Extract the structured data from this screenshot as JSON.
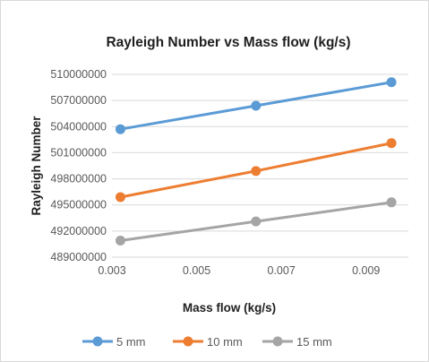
{
  "chart_data": {
    "type": "line",
    "title": "Rayleigh Number vs Mass flow (kg/s)",
    "xlabel": "Mass flow (kg/s)",
    "ylabel": "Rayleigh Number",
    "xlim": [
      0.003,
      0.01
    ],
    "ylim": [
      489000000,
      510000000
    ],
    "xticks": [
      "0.003",
      "0.005",
      "0.007",
      "0.009"
    ],
    "yticks": [
      "510000000",
      "507000000",
      "504000000",
      "501000000",
      "498000000",
      "495000000",
      "492000000",
      "489000000"
    ],
    "grid": "horizontal",
    "legend_position": "bottom",
    "x": [
      0.0032,
      0.0064,
      0.0096
    ],
    "series": [
      {
        "name": "5 mm",
        "color": "#5b9bd5",
        "values": [
          503700000,
          506400000,
          509100000
        ]
      },
      {
        "name": "10 mm",
        "color": "#ed7d31",
        "values": [
          495900000,
          498900000,
          502100000
        ]
      },
      {
        "name": "15 mm",
        "color": "#a5a5a5",
        "values": [
          490900000,
          493100000,
          495300000
        ]
      }
    ]
  }
}
